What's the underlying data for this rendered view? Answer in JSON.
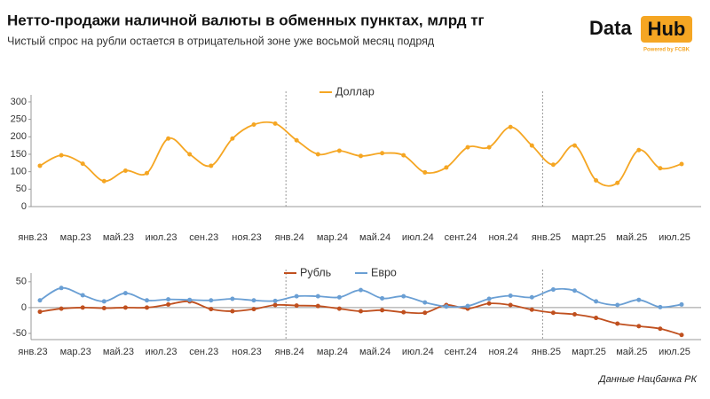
{
  "header": {
    "title": "Нетто-продажи наличной валюты в обменных пунктах, млрд тг",
    "subtitle": "Чистый спрос на рубли остается в отрицательной зоне уже восьмой месяц подряд"
  },
  "logo": {
    "left": "Data",
    "right": "Hub",
    "tagline": "Powered by FCBK"
  },
  "source": "Данные Нацбанка РК",
  "chart_data": [
    {
      "type": "line",
      "categories": [
        "янв.23",
        null,
        "мар.23",
        null,
        "май.23",
        null,
        "июл.23",
        null,
        "сен.23",
        null,
        "ноя.23",
        null,
        "янв.24",
        null,
        "мар.24",
        null,
        "май.24",
        null,
        "июл.24",
        null,
        "сент.24",
        null,
        "ноя.24",
        null,
        "янв.25",
        null,
        "март.25",
        null,
        "май.25",
        null,
        "июл.25"
      ],
      "series": [
        {
          "name": "Доллар",
          "color": "#f5a623",
          "values": [
            117,
            147,
            123,
            73,
            103,
            96,
            195,
            150,
            117,
            195,
            235,
            238,
            190,
            150,
            160,
            145,
            153,
            147,
            98,
            112,
            170,
            170,
            228,
            175,
            120,
            175,
            75,
            68,
            162,
            110,
            122
          ]
        }
      ],
      "ylim": [
        0,
        310
      ],
      "yticks": [
        0,
        50,
        100,
        150,
        200,
        250,
        300
      ],
      "legend": "top"
    },
    {
      "type": "line",
      "categories": [
        "янв.23",
        null,
        "мар.23",
        null,
        "май.23",
        null,
        "июл.23",
        null,
        "сен.23",
        null,
        "ноя.23",
        null,
        "янв.24",
        null,
        "мар.24",
        null,
        "май.24",
        null,
        "июл.24",
        null,
        "сент.24",
        null,
        "ноя.24",
        null,
        "янв.25",
        null,
        "март.25",
        null,
        "май.25",
        null,
        "июл.25"
      ],
      "series": [
        {
          "name": "Рубль",
          "color": "#c0501f",
          "values": [
            -8,
            -2,
            0,
            -1,
            0,
            0,
            6,
            12,
            -3,
            -7,
            -3,
            5,
            4,
            3,
            -2,
            -7,
            -5,
            -9,
            -10,
            5,
            -2,
            8,
            5,
            -4,
            -10,
            -13,
            -20,
            -31,
            -36,
            -41,
            -53
          ]
        },
        {
          "name": "Евро",
          "color": "#6a9fd4",
          "values": [
            14,
            38,
            24,
            12,
            28,
            14,
            16,
            15,
            14,
            17,
            14,
            13,
            22,
            22,
            20,
            34,
            18,
            22,
            10,
            2,
            3,
            17,
            23,
            20,
            35,
            33,
            12,
            5,
            15,
            1,
            6
          ]
        }
      ],
      "ylim": [
        -62,
        60
      ],
      "yticks": [
        -50,
        0,
        50
      ],
      "legend": "top"
    }
  ]
}
